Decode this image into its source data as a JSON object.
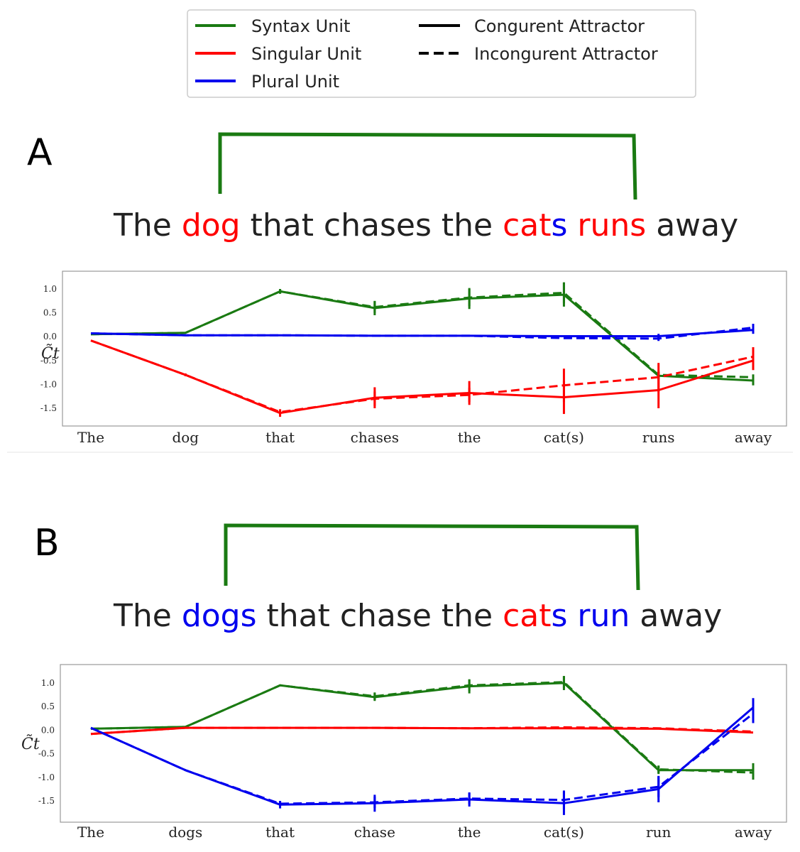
{
  "legend": {
    "entries": [
      {
        "label": "Syntax Unit",
        "color": "#1a7a12",
        "style": "solid"
      },
      {
        "label": "Singular Unit",
        "color": "#ff0000",
        "style": "solid"
      },
      {
        "label": "Plural Unit",
        "color": "#0000ee",
        "style": "solid"
      },
      {
        "label": "Congurent Attractor",
        "color": "#000000",
        "style": "solid"
      },
      {
        "label": "Incongurent Attractor",
        "color": "#000000",
        "style": "dashed"
      }
    ]
  },
  "colors": {
    "syntax": "#1a7a12",
    "singular": "#ff0000",
    "plural": "#0000ee",
    "text": "#222222"
  },
  "panels": [
    {
      "letter": "A",
      "sentence": [
        {
          "text": "The ",
          "color": "#222222"
        },
        {
          "text": "dog",
          "color": "#ff0000"
        },
        {
          "text": " that chases the ",
          "color": "#222222"
        },
        {
          "text": "cat",
          "color": "#ff0000"
        },
        {
          "text": "s",
          "color": "#0000ee"
        },
        {
          "text": " runs",
          "color": "#ff0000"
        },
        {
          "text": " away",
          "color": "#222222"
        }
      ]
    },
    {
      "letter": "B",
      "sentence": [
        {
          "text": "The ",
          "color": "#222222"
        },
        {
          "text": "dogs",
          "color": "#0000ee"
        },
        {
          "text": " that chase the ",
          "color": "#222222"
        },
        {
          "text": "cat",
          "color": "#ff0000"
        },
        {
          "text": "s",
          "color": "#0000ee"
        },
        {
          "text": " run",
          "color": "#0000ee"
        },
        {
          "text": " away",
          "color": "#222222"
        }
      ]
    }
  ],
  "chart_data": [
    {
      "type": "line",
      "ylabel": "C̃t",
      "ylim": [
        -1.7,
        1.2
      ],
      "yticks": [
        1.0,
        0.5,
        0.0,
        -0.5,
        -1.0,
        -1.5
      ],
      "ytick_labels": [
        "1.0",
        "0.5",
        "0.0",
        "-0.5",
        "-1.0",
        "-1.5"
      ],
      "grid": false,
      "categories": [
        "The",
        "dog",
        "that",
        "chases",
        "the",
        "cat(s)",
        "runs",
        "away"
      ],
      "series": [
        {
          "unit": "syntax",
          "condition": "congruent",
          "color": "#1a7a12",
          "dashed": false,
          "values": [
            0.05,
            0.08,
            0.95,
            0.6,
            0.8,
            0.88,
            -0.82,
            -0.92
          ],
          "errors": [
            0.0,
            0.0,
            0.05,
            0.15,
            0.22,
            0.25,
            0.08,
            0.1
          ]
        },
        {
          "unit": "syntax",
          "condition": "incongruent",
          "color": "#1a7a12",
          "dashed": true,
          "values": [
            0.05,
            0.08,
            0.95,
            0.62,
            0.82,
            0.92,
            -0.8,
            -0.85
          ],
          "errors": [
            0.0,
            0.0,
            0.05,
            0.12,
            0.18,
            0.22,
            0.08,
            0.06
          ]
        },
        {
          "unit": "singular",
          "condition": "congruent",
          "color": "#ff0000",
          "dashed": false,
          "values": [
            -0.08,
            -0.8,
            -1.6,
            -1.28,
            -1.18,
            -1.27,
            -1.12,
            -0.5
          ],
          "errors": [
            0.0,
            0.03,
            0.08,
            0.22,
            0.25,
            0.35,
            0.38,
            0.2
          ]
        },
        {
          "unit": "singular",
          "condition": "incongruent",
          "color": "#ff0000",
          "dashed": true,
          "values": [
            -0.08,
            -0.8,
            -1.58,
            -1.3,
            -1.22,
            -1.02,
            -0.85,
            -0.42
          ],
          "errors": [
            0.0,
            0.0,
            0.05,
            0.15,
            0.15,
            0.35,
            0.3,
            0.2
          ]
        },
        {
          "unit": "plural",
          "condition": "congruent",
          "color": "#0000ee",
          "dashed": false,
          "values": [
            0.07,
            0.03,
            0.03,
            0.02,
            0.02,
            0.01,
            0.01,
            0.14
          ],
          "errors": [
            0.0,
            0.0,
            0.0,
            0.0,
            0.0,
            0.0,
            0.05,
            0.08
          ]
        },
        {
          "unit": "plural",
          "condition": "incongruent",
          "color": "#0000ee",
          "dashed": true,
          "values": [
            0.07,
            0.03,
            0.03,
            0.02,
            0.02,
            -0.03,
            -0.04,
            0.19
          ],
          "errors": [
            0.0,
            0.0,
            0.0,
            0.0,
            0.0,
            0.0,
            0.05,
            0.08
          ]
        }
      ]
    },
    {
      "type": "line",
      "ylabel": "C̃t",
      "ylim": [
        -1.95,
        1.15
      ],
      "yticks": [
        1.0,
        0.5,
        0.0,
        -0.5,
        -1.0,
        -1.5
      ],
      "ytick_labels": [
        "1.0",
        "0.5",
        "0.0",
        "-0.5",
        "-1.0",
        "-1.5"
      ],
      "grid": false,
      "categories": [
        "The",
        "dogs",
        "that",
        "chase",
        "the",
        "cat(s)",
        "run",
        "away"
      ],
      "series": [
        {
          "unit": "syntax",
          "condition": "congruent",
          "color": "#1a7a12",
          "dashed": false,
          "values": [
            0.03,
            0.07,
            0.95,
            0.7,
            0.93,
            1.0,
            -0.85,
            -0.85
          ],
          "errors": [
            0.0,
            0.0,
            0.0,
            0.08,
            0.15,
            0.15,
            0.08,
            0.15
          ]
        },
        {
          "unit": "syntax",
          "condition": "incongruent",
          "color": "#1a7a12",
          "dashed": true,
          "values": [
            0.03,
            0.07,
            0.95,
            0.72,
            0.95,
            1.02,
            -0.83,
            -0.9
          ],
          "errors": [
            0.0,
            0.0,
            0.0,
            0.08,
            0.12,
            0.12,
            0.08,
            0.15
          ]
        },
        {
          "unit": "singular",
          "condition": "congruent",
          "color": "#ff0000",
          "dashed": false,
          "values": [
            -0.08,
            0.05,
            0.05,
            0.05,
            0.04,
            0.04,
            0.03,
            -0.05
          ],
          "errors": [
            0.0,
            0.0,
            0.0,
            0.0,
            0.0,
            0.0,
            0.0,
            0.0
          ]
        },
        {
          "unit": "singular",
          "condition": "incongruent",
          "color": "#ff0000",
          "dashed": true,
          "values": [
            -0.08,
            0.05,
            0.05,
            0.05,
            0.04,
            0.06,
            0.04,
            -0.03
          ],
          "errors": [
            0.0,
            0.0,
            0.0,
            0.0,
            0.0,
            0.0,
            0.0,
            0.0
          ]
        },
        {
          "unit": "plural",
          "condition": "congruent",
          "color": "#0000ee",
          "dashed": false,
          "values": [
            0.05,
            -0.85,
            -1.58,
            -1.55,
            -1.47,
            -1.55,
            -1.25,
            0.48
          ],
          "errors": [
            0.0,
            0.0,
            0.08,
            0.18,
            0.15,
            0.25,
            0.28,
            0.2
          ]
        },
        {
          "unit": "plural",
          "condition": "incongruent",
          "color": "#0000ee",
          "dashed": true,
          "values": [
            0.05,
            -0.85,
            -1.56,
            -1.53,
            -1.45,
            -1.48,
            -1.2,
            0.35
          ],
          "errors": [
            0.0,
            0.0,
            0.05,
            0.12,
            0.12,
            0.2,
            0.22,
            0.2
          ]
        }
      ]
    }
  ]
}
